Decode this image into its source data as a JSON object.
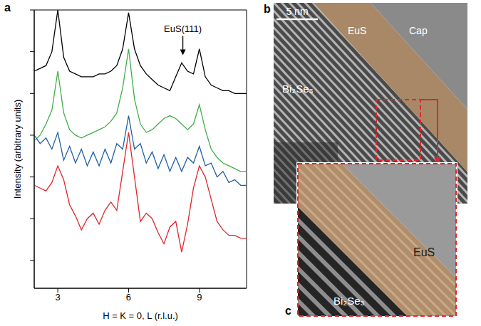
{
  "chart_data": {
    "type": "line",
    "panel": "a",
    "xlabel": "H = K = 0, L (r.l.u.)",
    "ylabel": "Intensity (arbitrary units)",
    "xlim": [
      2,
      11
    ],
    "ylim": [
      0,
      10
    ],
    "xticks": [
      3,
      6,
      9
    ],
    "yticks": [
      1,
      2.5,
      4,
      5.5,
      7,
      8.5,
      10
    ],
    "tick_labels": "x",
    "x": [
      2,
      2.25,
      2.5,
      2.75,
      3,
      3.25,
      3.5,
      3.75,
      4,
      4.25,
      4.5,
      4.75,
      5,
      5.25,
      5.5,
      5.75,
      6,
      6.25,
      6.5,
      6.75,
      7,
      7.25,
      7.5,
      7.75,
      8,
      8.25,
      8.5,
      8.75,
      9,
      9.25,
      9.5,
      9.75,
      10,
      10.25,
      10.5,
      10.75,
      11
    ],
    "series": [
      {
        "color": "#000000",
        "values": [
          7.8,
          7.9,
          8.0,
          8.5,
          10.0,
          8.3,
          7.8,
          7.7,
          7.6,
          7.6,
          7.6,
          7.7,
          7.7,
          7.8,
          8.0,
          8.6,
          9.9,
          8.6,
          8.0,
          7.7,
          7.5,
          7.3,
          7.2,
          7.1,
          7.6,
          8.1,
          7.8,
          7.7,
          8.6,
          7.6,
          7.3,
          7.2,
          7.1,
          7.1,
          7.0,
          7.0,
          7.0
        ]
      },
      {
        "color": "#3fae49",
        "values": [
          5.3,
          5.5,
          5.9,
          6.4,
          7.8,
          6.3,
          5.7,
          5.5,
          5.4,
          5.5,
          5.6,
          5.7,
          5.8,
          6.0,
          6.3,
          7.2,
          8.6,
          6.8,
          5.9,
          5.6,
          5.7,
          5.9,
          6.1,
          6.2,
          6.1,
          5.9,
          5.7,
          5.9,
          6.6,
          5.7,
          5.0,
          4.7,
          4.5,
          4.4,
          4.3,
          4.2,
          4.2
        ]
      },
      {
        "color": "#1f5fa8",
        "values": [
          5.5,
          5.2,
          5.4,
          5.0,
          5.6,
          4.6,
          5.1,
          4.5,
          5.0,
          4.4,
          4.9,
          4.4,
          5.0,
          4.5,
          5.2,
          5.0,
          6.2,
          5.0,
          5.2,
          4.5,
          4.9,
          4.3,
          4.8,
          4.2,
          4.7,
          4.2,
          4.7,
          4.5,
          5.1,
          4.4,
          4.5,
          4.0,
          4.2,
          3.8,
          3.9,
          3.7,
          3.7
        ]
      },
      {
        "color": "#e0262b",
        "values": [
          3.7,
          3.6,
          3.5,
          3.8,
          4.4,
          3.9,
          3.0,
          2.6,
          2.1,
          2.5,
          2.7,
          2.3,
          2.8,
          3.1,
          2.8,
          4.2,
          5.6,
          4.0,
          2.4,
          2.7,
          2.5,
          2.0,
          1.6,
          2.2,
          2.4,
          1.3,
          2.3,
          3.6,
          4.4,
          4.0,
          3.2,
          2.4,
          2.1,
          1.9,
          1.9,
          1.8,
          1.8
        ]
      }
    ],
    "annotations": [
      {
        "text": "EuS(111)",
        "x": 8.3,
        "y": 8.3
      }
    ]
  },
  "images": {
    "b": {
      "label": "b",
      "scale_bar": "5 nm",
      "regions": [
        "Bi₂Se₃",
        "EuS",
        "Cap"
      ]
    },
    "c": {
      "label": "c",
      "regions": [
        "EuS",
        "Bi₂Se₃"
      ]
    }
  }
}
